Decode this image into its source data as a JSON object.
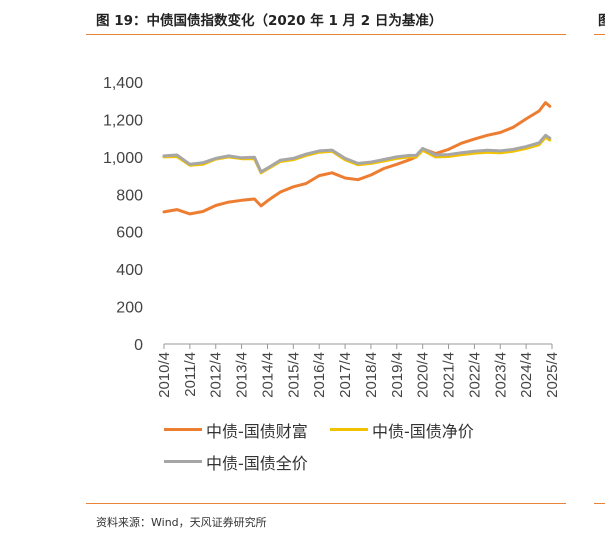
{
  "figure": {
    "title": "图 19：中债国债指数变化（2020 年 1 月 2 日为基准）",
    "source": "资料来源：Wind，天风证券研究所",
    "edge_title": "图"
  },
  "colors": {
    "accent": "#e8833a",
    "wealth": "#ed7d31",
    "net": "#f2c200",
    "full": "#a6a6a6"
  },
  "chart_data": {
    "type": "line",
    "title": "",
    "xlabel": "",
    "ylabel": "",
    "ylim": [
      0,
      1400
    ],
    "yticks": [
      "0",
      "200",
      "400",
      "600",
      "800",
      "1,000",
      "1,200",
      "1,400"
    ],
    "ytick_values": [
      0,
      200,
      400,
      600,
      800,
      1000,
      1200,
      1400
    ],
    "xticks": [
      "2010/4",
      "2011/4",
      "2012/4",
      "2013/4",
      "2014/4",
      "2015/4",
      "2016/4",
      "2017/4",
      "2018/4",
      "2019/4",
      "2020/4",
      "2021/4",
      "2022/4",
      "2023/4",
      "2024/4",
      "2025/4"
    ],
    "grid": false,
    "legend_position": "bottom",
    "series": [
      {
        "name": "中债-国债财富",
        "x": [
          "2010/4",
          "2010/10",
          "2011/4",
          "2011/10",
          "2012/4",
          "2012/10",
          "2013/4",
          "2013/10",
          "2014/1",
          "2014/4",
          "2014/10",
          "2015/4",
          "2015/10",
          "2016/4",
          "2016/10",
          "2017/4",
          "2017/10",
          "2018/4",
          "2018/10",
          "2019/4",
          "2019/10",
          "2020/1",
          "2020/4",
          "2020/10",
          "2021/4",
          "2021/10",
          "2022/4",
          "2022/10",
          "2023/4",
          "2023/10",
          "2024/4",
          "2024/10",
          "2025/1",
          "2025/3"
        ],
        "values": [
          706,
          718,
          695,
          708,
          740,
          758,
          768,
          775,
          738,
          765,
          812,
          840,
          858,
          900,
          915,
          887,
          878,
          903,
          938,
          960,
          985,
          1000,
          1043,
          1018,
          1040,
          1073,
          1095,
          1115,
          1130,
          1158,
          1203,
          1245,
          1290,
          1270
        ]
      },
      {
        "name": "中债-国债净价",
        "x": [
          "2010/4",
          "2010/10",
          "2011/4",
          "2011/10",
          "2012/4",
          "2012/10",
          "2013/4",
          "2013/10",
          "2014/1",
          "2014/4",
          "2014/10",
          "2015/4",
          "2015/10",
          "2016/4",
          "2016/10",
          "2017/4",
          "2017/10",
          "2018/4",
          "2018/10",
          "2019/4",
          "2019/10",
          "2020/1",
          "2020/4",
          "2020/10",
          "2021/4",
          "2021/10",
          "2022/4",
          "2022/10",
          "2023/4",
          "2023/10",
          "2024/4",
          "2024/10",
          "2025/1",
          "2025/3"
        ],
        "values": [
          1000,
          1002,
          955,
          960,
          988,
          1000,
          990,
          990,
          915,
          935,
          975,
          985,
          1008,
          1025,
          1030,
          985,
          958,
          965,
          978,
          992,
          1000,
          1000,
          1035,
          1000,
          1002,
          1012,
          1020,
          1025,
          1022,
          1030,
          1045,
          1065,
          1105,
          1090
        ]
      },
      {
        "name": "中债-国债全价",
        "x": [
          "2010/4",
          "2010/10",
          "2011/4",
          "2011/10",
          "2012/4",
          "2012/10",
          "2013/4",
          "2013/10",
          "2014/1",
          "2014/4",
          "2014/10",
          "2015/4",
          "2015/10",
          "2016/4",
          "2016/10",
          "2017/4",
          "2017/10",
          "2018/4",
          "2018/10",
          "2019/4",
          "2019/10",
          "2020/1",
          "2020/4",
          "2020/10",
          "2021/4",
          "2021/10",
          "2022/4",
          "2022/10",
          "2023/4",
          "2023/10",
          "2024/4",
          "2024/10",
          "2025/1",
          "2025/3"
        ],
        "values": [
          1005,
          1010,
          960,
          968,
          992,
          1005,
          995,
          998,
          920,
          940,
          982,
          992,
          1015,
          1032,
          1036,
          992,
          965,
          972,
          986,
          1000,
          1008,
          1008,
          1045,
          1010,
          1012,
          1022,
          1030,
          1035,
          1032,
          1040,
          1055,
          1075,
          1115,
          1100
        ]
      }
    ]
  }
}
